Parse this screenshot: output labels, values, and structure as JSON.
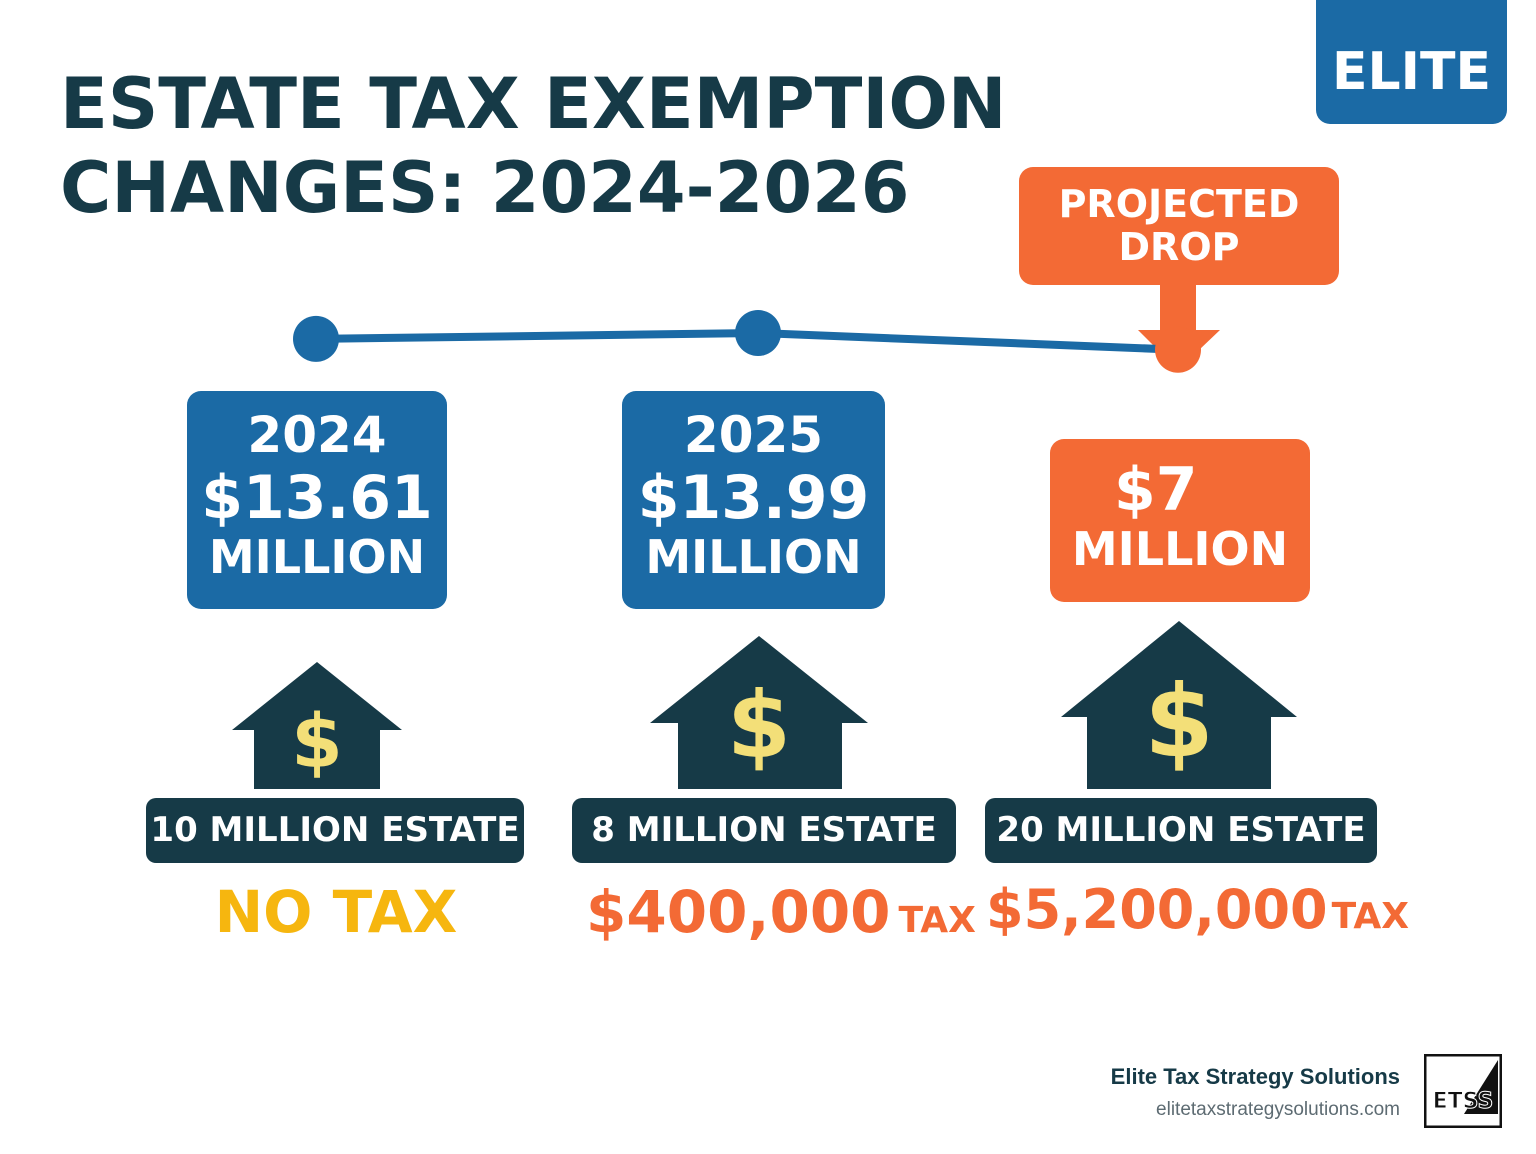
{
  "title": {
    "line1": "ESTATE TAX EXEMPTION",
    "line2": "CHANGES: 2024-2026"
  },
  "brand_badge": "ELITE",
  "callout": {
    "line1": "PROJECTED",
    "line2": "DROP"
  },
  "chart_data": {
    "type": "line",
    "title": "ESTATE TAX EXEMPTION CHANGES: 2024-2026",
    "x": [
      "2024",
      "2025",
      ""
    ],
    "series": [
      {
        "values": [
          13.61,
          13.99,
          7
        ]
      }
    ],
    "unit": "MILLION",
    "annotations": [
      "PROJECTED DROP"
    ]
  },
  "boxes": [
    {
      "year": "2024",
      "amount": "$13.61",
      "unit": "MILLION"
    },
    {
      "year": "2025",
      "amount": "$13.99",
      "unit": "MILLION"
    },
    {
      "year": "",
      "amount": "$7",
      "unit": "MILLION"
    }
  ],
  "estates": [
    {
      "label": "10 MILLION ESTATE",
      "result": "NO TAX",
      "tax_word": "",
      "result_color": "#f6b60f"
    },
    {
      "label": "8 MILLION  ESTATE",
      "result": "$400,000",
      "tax_word": "TAX",
      "result_color": "#f36a35"
    },
    {
      "label": "20 MILLION ESTATE",
      "result": "$5,200,000",
      "tax_word": "TAX",
      "result_color": "#f36a35"
    }
  ],
  "footer": {
    "company": "Elite Tax Strategy Solutions",
    "url": "elitetaxstrategysolutions.com",
    "logo_text": "ETSS"
  },
  "colors": {
    "navy": "#163a47",
    "blue": "#1b6aa5",
    "orange": "#f36a35",
    "gold": "#f6b60f",
    "dollar": "#f3df78"
  }
}
